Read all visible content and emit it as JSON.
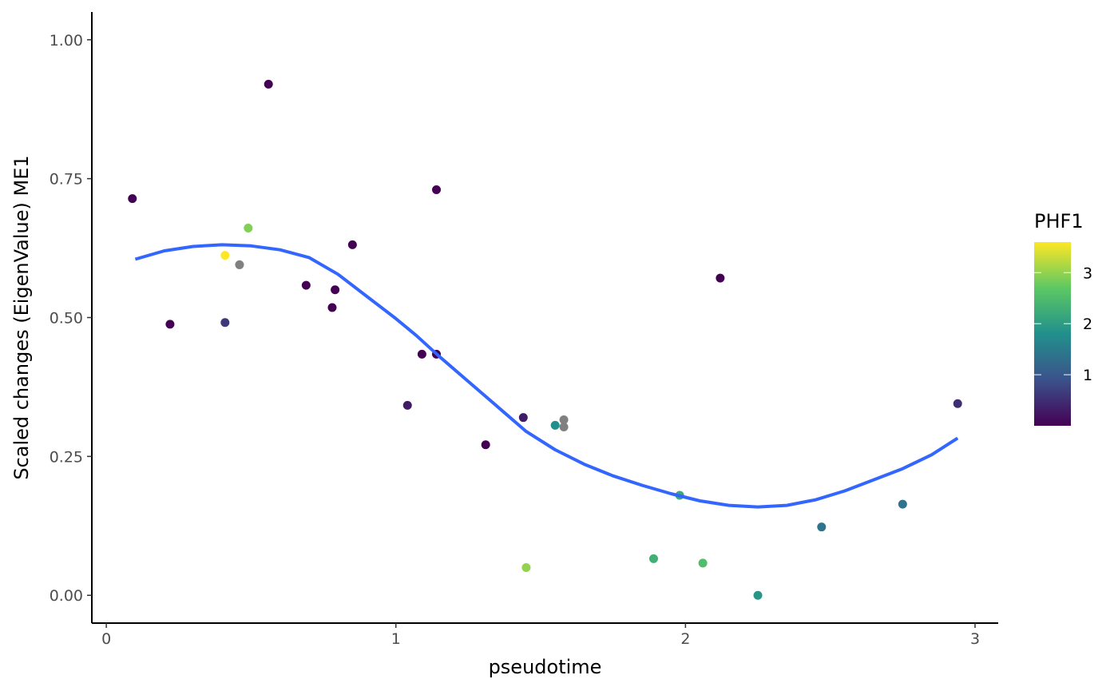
{
  "chart_data": {
    "type": "scatter",
    "xlabel": "pseudotime",
    "ylabel": "Scaled changes (EigenValue) ME1",
    "xlim": [
      -0.05,
      3.08
    ],
    "ylim": [
      -0.05,
      1.05
    ],
    "x_ticks": [
      0,
      1,
      2,
      3
    ],
    "x_tick_labels": [
      "0",
      "1",
      "2",
      "3"
    ],
    "y_ticks": [
      0,
      0.25,
      0.5,
      0.75,
      1.0
    ],
    "y_tick_labels": [
      "0.00",
      "0.25",
      "0.50",
      "0.75",
      "1.00"
    ],
    "grid": false,
    "legend": {
      "title": "PHF1",
      "position": "right",
      "type": "colorbar",
      "range": [
        0,
        3.6
      ],
      "ticks": [
        1,
        2,
        3
      ],
      "tick_labels": [
        "1",
        "2",
        "3"
      ],
      "colors": [
        "#440154",
        "#3b528b",
        "#21908c",
        "#5dc863",
        "#fde725"
      ]
    },
    "na_color": "#808080",
    "smooth_color": "#3366FF",
    "points": [
      {
        "x": 0.09,
        "y": 0.714,
        "color": 0.0
      },
      {
        "x": 0.22,
        "y": 0.488,
        "color": 0.0
      },
      {
        "x": 0.41,
        "y": 0.612,
        "color": 3.6
      },
      {
        "x": 0.41,
        "y": 0.491,
        "color": 0.6
      },
      {
        "x": 0.46,
        "y": 0.595,
        "color": null
      },
      {
        "x": 0.49,
        "y": 0.661,
        "color": 2.9
      },
      {
        "x": 0.56,
        "y": 0.92,
        "color": 0.0
      },
      {
        "x": 0.69,
        "y": 0.558,
        "color": 0.0
      },
      {
        "x": 0.78,
        "y": 0.518,
        "color": 0.0
      },
      {
        "x": 0.79,
        "y": 0.55,
        "color": 0.0
      },
      {
        "x": 0.85,
        "y": 0.631,
        "color": 0.0
      },
      {
        "x": 1.04,
        "y": 0.342,
        "color": 0.3
      },
      {
        "x": 1.09,
        "y": 0.434,
        "color": 0.0
      },
      {
        "x": 1.14,
        "y": 0.434,
        "color": 0.0
      },
      {
        "x": 1.14,
        "y": 0.73,
        "color": 0.0
      },
      {
        "x": 1.31,
        "y": 0.271,
        "color": 0.0
      },
      {
        "x": 1.44,
        "y": 0.32,
        "color": 0.3
      },
      {
        "x": 1.45,
        "y": 0.05,
        "color": 3.0
      },
      {
        "x": 1.55,
        "y": 0.306,
        "color": 1.8
      },
      {
        "x": 1.58,
        "y": 0.303,
        "color": null
      },
      {
        "x": 1.58,
        "y": 0.316,
        "color": null
      },
      {
        "x": 1.89,
        "y": 0.066,
        "color": 2.3
      },
      {
        "x": 1.98,
        "y": 0.18,
        "color": 2.2
      },
      {
        "x": 2.06,
        "y": 0.058,
        "color": 2.5
      },
      {
        "x": 2.12,
        "y": 0.571,
        "color": 0.0
      },
      {
        "x": 2.25,
        "y": 0.0,
        "color": 1.9
      },
      {
        "x": 2.47,
        "y": 0.123,
        "color": 1.4
      },
      {
        "x": 2.75,
        "y": 0.164,
        "color": 1.4
      },
      {
        "x": 2.94,
        "y": 0.345,
        "color": 0.5
      }
    ],
    "smooth_line": {
      "x": [
        0.1,
        0.2,
        0.3,
        0.4,
        0.5,
        0.6,
        0.7,
        0.8,
        0.9,
        1.0,
        1.07,
        1.15,
        1.25,
        1.35,
        1.45,
        1.55,
        1.65,
        1.75,
        1.85,
        1.95,
        2.05,
        2.15,
        2.25,
        2.35,
        2.45,
        2.55,
        2.65,
        2.75,
        2.85,
        2.94
      ],
      "y": [
        0.605,
        0.62,
        0.628,
        0.631,
        0.629,
        0.622,
        0.608,
        0.578,
        0.538,
        0.498,
        0.468,
        0.43,
        0.385,
        0.34,
        0.295,
        0.262,
        0.236,
        0.215,
        0.198,
        0.183,
        0.17,
        0.162,
        0.159,
        0.162,
        0.172,
        0.188,
        0.208,
        0.228,
        0.253,
        0.283
      ]
    }
  }
}
